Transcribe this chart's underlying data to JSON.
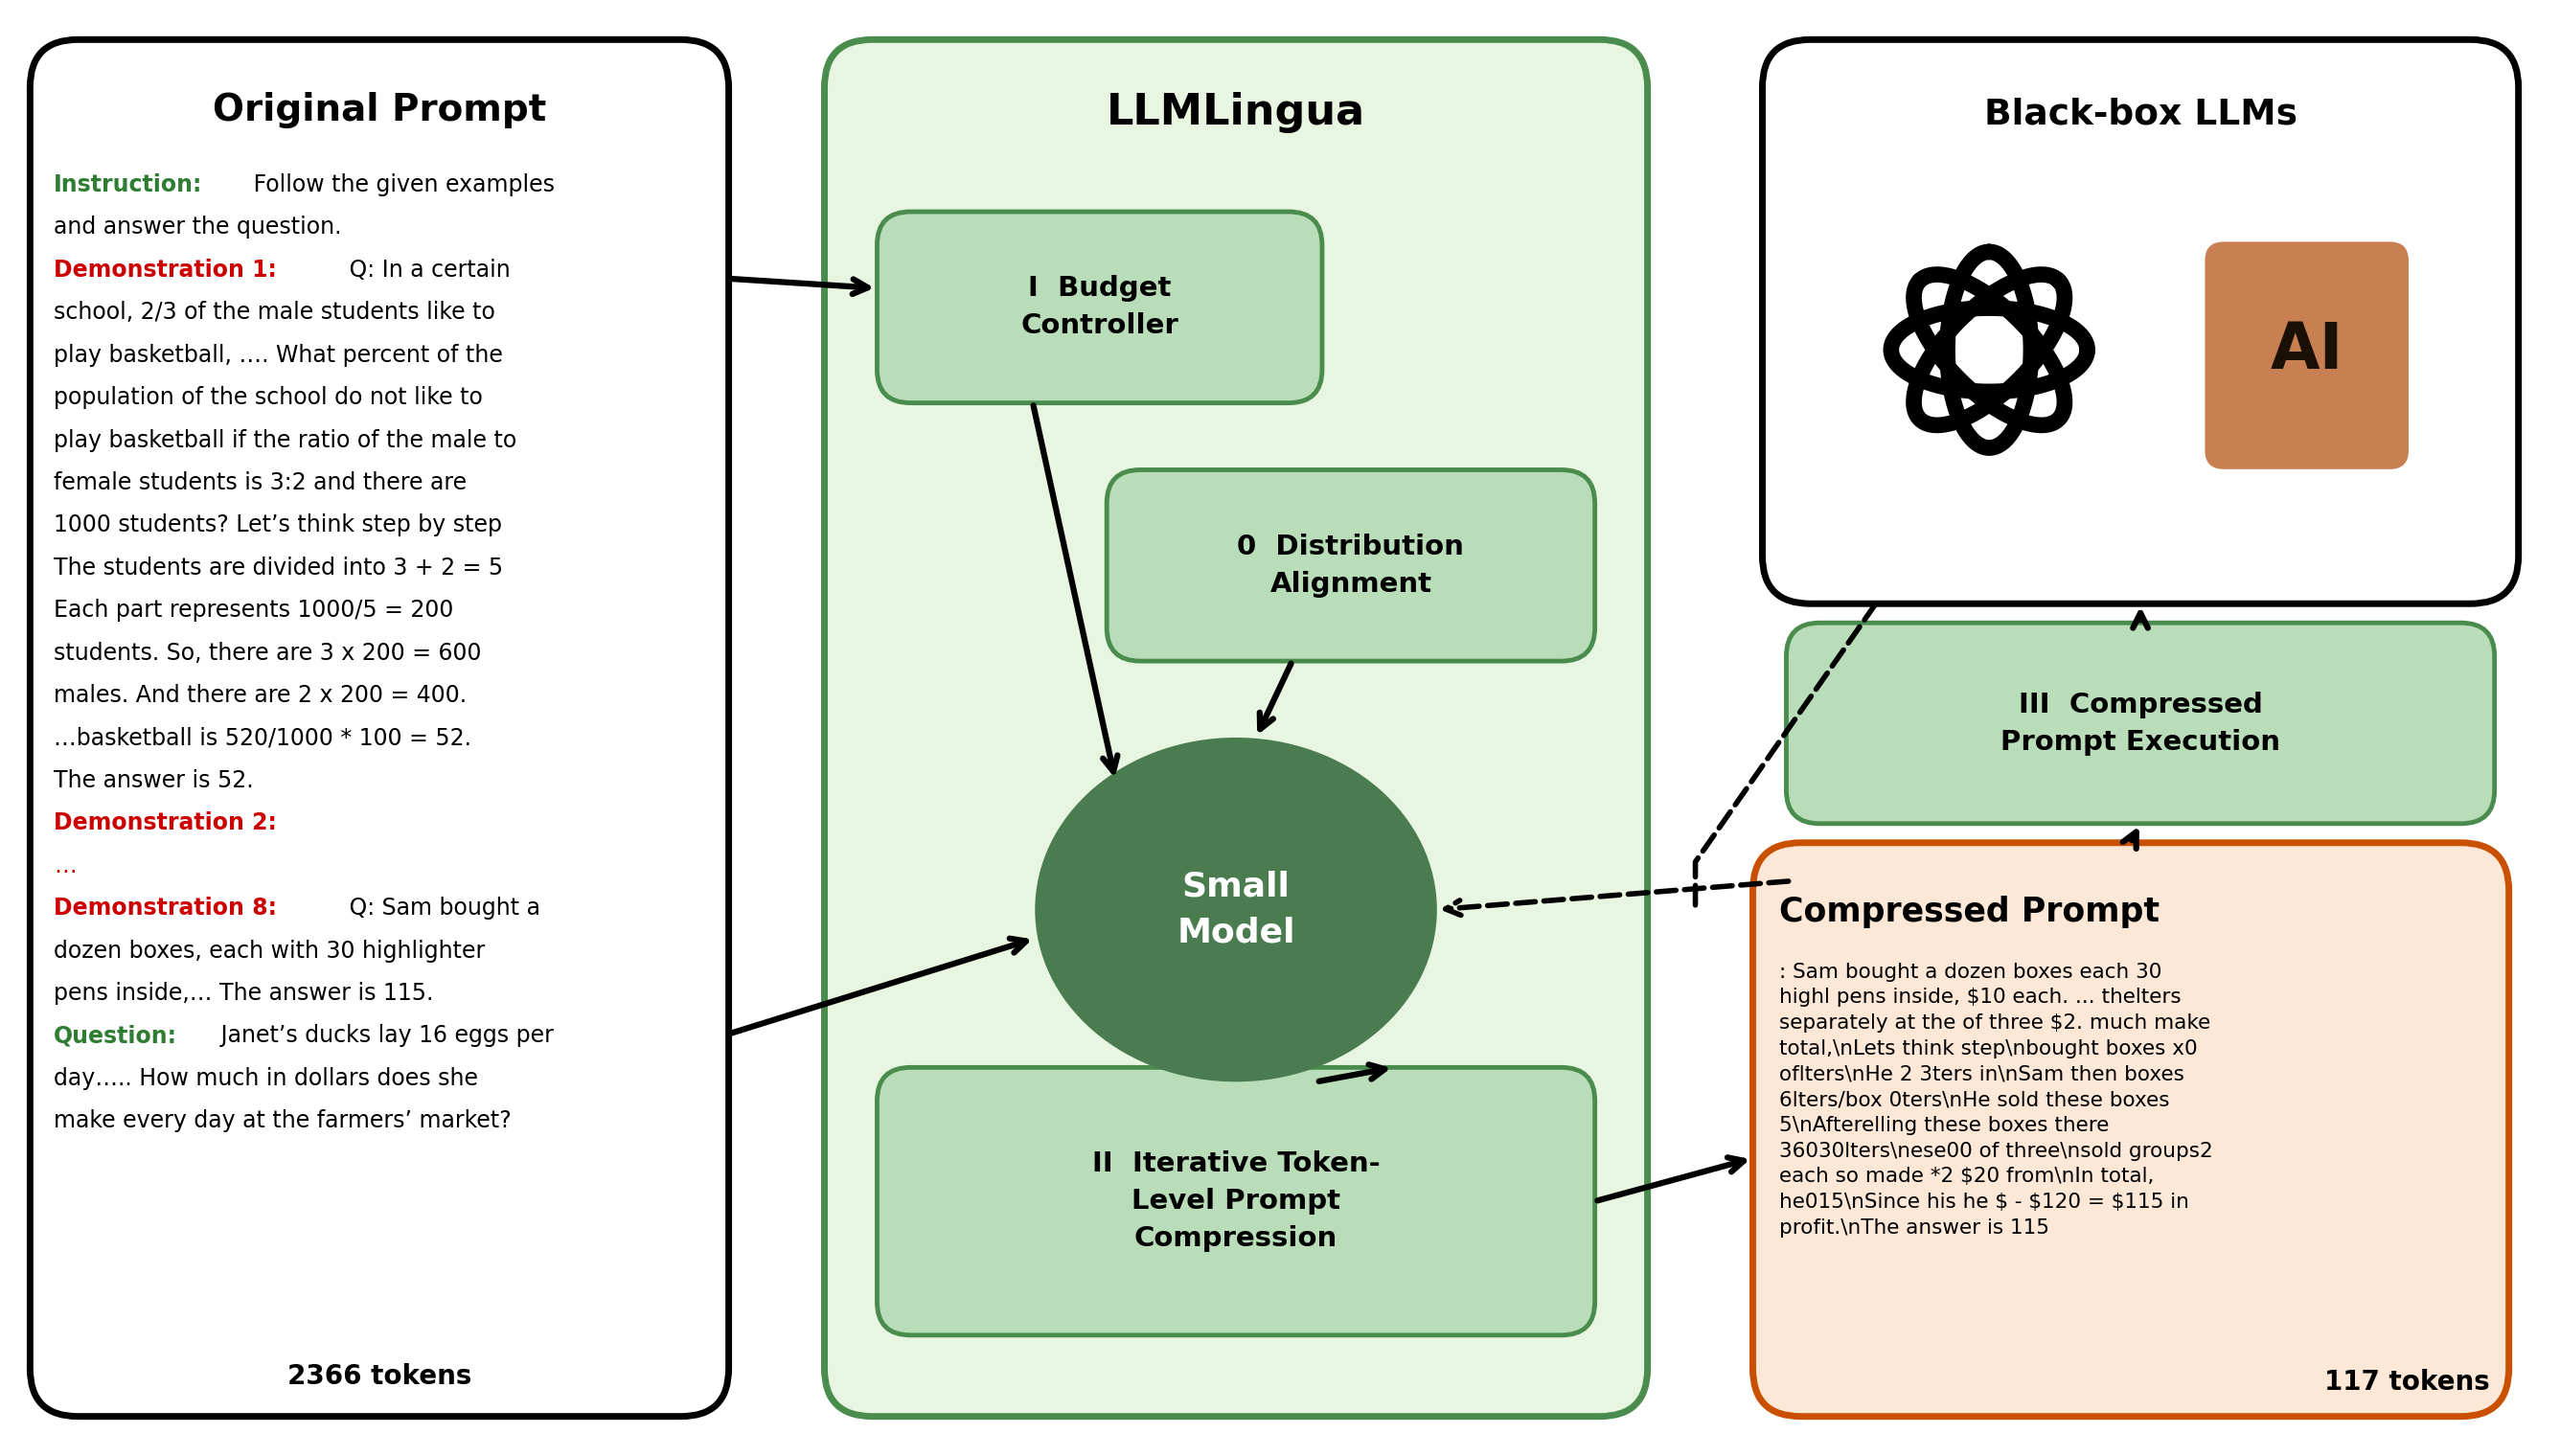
{
  "title_original": "Original Prompt",
  "title_llmlingua": "LLMLingua",
  "title_blackbox": "Black-box LLMs",
  "title_compressed": "Compressed Prompt",
  "original_tokens": "2366 tokens",
  "compressed_tokens": "117 tokens",
  "box1_label": "I  Budget\nController",
  "box2_label": "0  Distribution\nAlignment",
  "box3_label": "II  Iterative Token-\nLevel Prompt\nCompression",
  "box4_label": "III  Compressed\nPrompt Execution",
  "circle_label": "Small\nModel",
  "op_text_lines": [
    [
      [
        "Instruction:",
        "#2e7d32",
        true
      ],
      [
        " Follow the given examples",
        "#000000",
        false
      ]
    ],
    [
      [
        "and answer the question.",
        "#000000",
        false
      ]
    ],
    [
      [
        "Demonstration 1:",
        "#cc0000",
        true
      ],
      [
        " Q: In a certain",
        "#000000",
        false
      ]
    ],
    [
      [
        "school, 2/3 of the male students like to",
        "#000000",
        false
      ]
    ],
    [
      [
        "play basketball, …. What percent of the",
        "#000000",
        false
      ]
    ],
    [
      [
        "population of the school do not like to",
        "#000000",
        false
      ]
    ],
    [
      [
        "play basketball if the ratio of the male to",
        "#000000",
        false
      ]
    ],
    [
      [
        "female students is 3:2 and there are",
        "#000000",
        false
      ]
    ],
    [
      [
        "1000 students? Let’s think step by step",
        "#000000",
        false
      ]
    ],
    [
      [
        "The students are divided into 3 + 2 = 5",
        "#000000",
        false
      ]
    ],
    [
      [
        "Each part represents 1000/5 = 200",
        "#000000",
        false
      ]
    ],
    [
      [
        "students. So, there are 3 x 200 = 600",
        "#000000",
        false
      ]
    ],
    [
      [
        "males. And there are 2 x 200 = 400.",
        "#000000",
        false
      ]
    ],
    [
      [
        "…basketball is 520/1000 * 100 = 52.",
        "#000000",
        false
      ]
    ],
    [
      [
        "The answer is 52.",
        "#000000",
        false
      ]
    ],
    [
      [
        "Demonstration 2:",
        "#cc0000",
        true
      ]
    ],
    [
      [
        "…",
        "#cc0000",
        false
      ]
    ],
    [
      [
        "Demonstration 8:",
        "#cc0000",
        true
      ],
      [
        " Q: Sam bought a",
        "#000000",
        false
      ]
    ],
    [
      [
        "dozen boxes, each with 30 highlighter",
        "#000000",
        false
      ]
    ],
    [
      [
        "pens inside,… The answer is 115.",
        "#000000",
        false
      ]
    ],
    [
      [
        "Question:",
        "#2e7d32",
        true
      ],
      [
        " Janet’s ducks lay 16 eggs per",
        "#000000",
        false
      ]
    ],
    [
      [
        "day….. How much in dollars does she",
        "#000000",
        false
      ]
    ],
    [
      [
        "make every day at the farmers’ market?",
        "#000000",
        false
      ]
    ]
  ],
  "compressed_text": ": Sam bought a dozen boxes each 30\nhighl pens inside, $10 each. ... thelters\nseparately at the of three $2. much make\ntotal,\\nLets think step\\nbought boxes x0\noflters\\nHe 2 3ters in\\nSam then boxes\n6lters/box 0ters\\nHe sold these boxes\n5\\nAfterelling these boxes there\n36030lters\\nese00 of three\\nsold groups2\neach so made *2 $20 from\\nIn total,\nhe015\\nSince his he $ - $120 = $115 in\nprofit.\\nThe answer is 115",
  "color_green_light_bg": "#e8f5e0",
  "color_green_border": "#4a8c4e",
  "color_green_box_fill": "#b8ddb8",
  "color_green_box_border": "#4a8c4e",
  "color_dark_green_circle": "#4a7c50",
  "color_orange_border": "#c85000",
  "color_orange_bg": "#fde8d8",
  "color_black_border": "#000000",
  "color_white_bg": "#ffffff"
}
